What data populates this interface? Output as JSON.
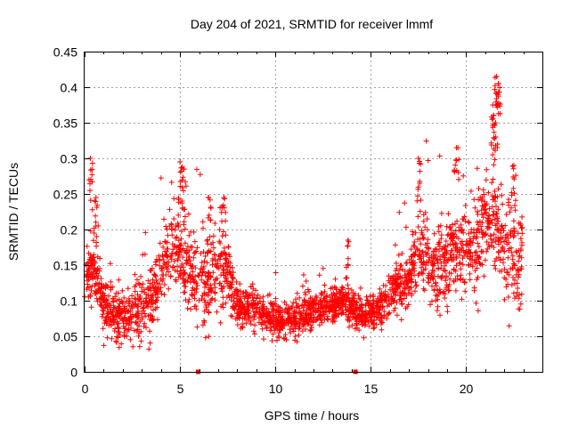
{
  "chart_data": {
    "type": "scatter",
    "title": "Day 204 of 2021, SRMTID for receiver lmmf",
    "xlabel": "GPS time / hours",
    "ylabel": "SRMTID / TECUs",
    "xlim": [
      0,
      24
    ],
    "ylim": [
      0,
      0.45
    ],
    "x_ticks": [
      0,
      5,
      10,
      15,
      20
    ],
    "y_ticks": [
      0,
      0.05,
      0.1,
      0.15,
      0.2,
      0.25,
      0.3,
      0.35,
      0.4,
      0.45
    ],
    "x_tick_labels": [
      "0",
      "5",
      "10",
      "15",
      "20"
    ],
    "y_tick_labels": [
      "0",
      "0.05",
      "0.1",
      "0.15",
      "0.2",
      "0.25",
      "0.3",
      "0.35",
      "0.4",
      "0.45"
    ],
    "grid": true,
    "marker": "plus",
    "color": "#ff0000",
    "zero_markers_x": [
      5.95,
      14.2
    ],
    "trend": [
      {
        "x": 0.0,
        "y": 0.12
      },
      {
        "x": 0.5,
        "y": 0.15
      },
      {
        "x": 1.0,
        "y": 0.09
      },
      {
        "x": 1.5,
        "y": 0.08
      },
      {
        "x": 2.0,
        "y": 0.07
      },
      {
        "x": 2.5,
        "y": 0.08
      },
      {
        "x": 3.0,
        "y": 0.09
      },
      {
        "x": 3.5,
        "y": 0.1
      },
      {
        "x": 4.0,
        "y": 0.14
      },
      {
        "x": 4.5,
        "y": 0.17
      },
      {
        "x": 5.0,
        "y": 0.18
      },
      {
        "x": 5.5,
        "y": 0.14
      },
      {
        "x": 6.0,
        "y": 0.12
      },
      {
        "x": 6.5,
        "y": 0.13
      },
      {
        "x": 7.0,
        "y": 0.15
      },
      {
        "x": 7.5,
        "y": 0.14
      },
      {
        "x": 8.0,
        "y": 0.09
      },
      {
        "x": 8.5,
        "y": 0.09
      },
      {
        "x": 9.0,
        "y": 0.09
      },
      {
        "x": 9.5,
        "y": 0.08
      },
      {
        "x": 10.0,
        "y": 0.075
      },
      {
        "x": 10.5,
        "y": 0.07
      },
      {
        "x": 11.0,
        "y": 0.075
      },
      {
        "x": 11.5,
        "y": 0.08
      },
      {
        "x": 12.0,
        "y": 0.085
      },
      {
        "x": 12.5,
        "y": 0.09
      },
      {
        "x": 13.0,
        "y": 0.095
      },
      {
        "x": 13.5,
        "y": 0.1
      },
      {
        "x": 14.0,
        "y": 0.09
      },
      {
        "x": 14.5,
        "y": 0.08
      },
      {
        "x": 15.0,
        "y": 0.08
      },
      {
        "x": 15.5,
        "y": 0.09
      },
      {
        "x": 16.0,
        "y": 0.11
      },
      {
        "x": 16.5,
        "y": 0.12
      },
      {
        "x": 17.0,
        "y": 0.13
      },
      {
        "x": 17.5,
        "y": 0.17
      },
      {
        "x": 18.0,
        "y": 0.16
      },
      {
        "x": 18.5,
        "y": 0.14
      },
      {
        "x": 19.0,
        "y": 0.15
      },
      {
        "x": 19.5,
        "y": 0.17
      },
      {
        "x": 20.0,
        "y": 0.17
      },
      {
        "x": 20.5,
        "y": 0.18
      },
      {
        "x": 21.0,
        "y": 0.21
      },
      {
        "x": 21.5,
        "y": 0.22
      },
      {
        "x": 22.0,
        "y": 0.18
      },
      {
        "x": 22.5,
        "y": 0.16
      },
      {
        "x": 22.9,
        "y": 0.14
      }
    ],
    "spread": [
      {
        "x": 0.0,
        "y": 0.035
      },
      {
        "x": 2.0,
        "y": 0.03
      },
      {
        "x": 4.5,
        "y": 0.05
      },
      {
        "x": 7.0,
        "y": 0.05
      },
      {
        "x": 8.0,
        "y": 0.025
      },
      {
        "x": 12.0,
        "y": 0.02
      },
      {
        "x": 15.0,
        "y": 0.02
      },
      {
        "x": 17.5,
        "y": 0.04
      },
      {
        "x": 20.0,
        "y": 0.05
      },
      {
        "x": 22.9,
        "y": 0.06
      }
    ],
    "peaks": [
      {
        "x": 0.3,
        "y": 0.3
      },
      {
        "x": 0.6,
        "y": 0.245
      },
      {
        "x": 5.0,
        "y": 0.295
      },
      {
        "x": 5.2,
        "y": 0.285
      },
      {
        "x": 6.5,
        "y": 0.245
      },
      {
        "x": 7.3,
        "y": 0.245
      },
      {
        "x": 13.8,
        "y": 0.185
      },
      {
        "x": 17.5,
        "y": 0.3
      },
      {
        "x": 19.5,
        "y": 0.315
      },
      {
        "x": 21.4,
        "y": 0.375
      },
      {
        "x": 21.6,
        "y": 0.415
      },
      {
        "x": 21.7,
        "y": 0.405
      },
      {
        "x": 21.55,
        "y": 0.35
      },
      {
        "x": 22.5,
        "y": 0.29
      }
    ],
    "n_points": 2600,
    "x_range": [
      0,
      22.95
    ]
  }
}
